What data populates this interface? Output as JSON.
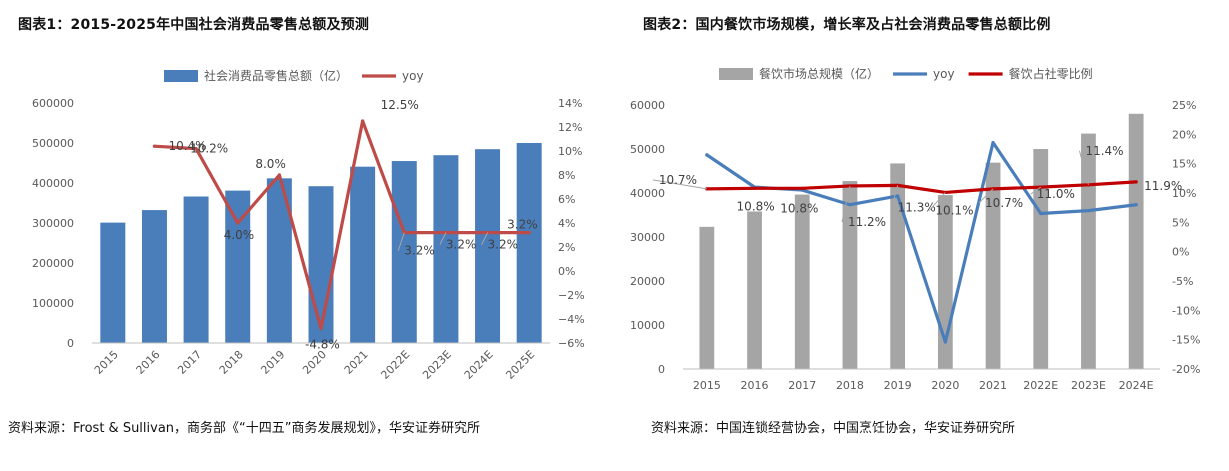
{
  "figures": {
    "left": {
      "title": "图表1：2015-2025年中国社会消费品零售总额及预测",
      "source": "资料来源：Frost & Sullivan，商务部《“十四五”商务发展规划》，华安证券研究所"
    },
    "right": {
      "title": "图表2：国内餐饮市场规模，增长率及占社会消费品零售总额比例",
      "source": "资料来源：中国连锁经营协会，中国烹饪协会，华安证券研究所"
    }
  },
  "chart_data": [
    {
      "type": "bar+line",
      "title": "",
      "categories": [
        "2015",
        "2016",
        "2017",
        "2018",
        "2019",
        "2020",
        "2021",
        "2022E",
        "2023E",
        "2024E",
        "2025E"
      ],
      "series": [
        {
          "name": "社会消费品零售总额（亿）",
          "type": "bar",
          "axis": "left",
          "color": "#4a7ebb",
          "values": [
            300931,
            332316,
            366262,
            380987,
            411649,
            391981,
            440823,
            454929,
            469485,
            484509,
            500013
          ]
        },
        {
          "name": "yoy",
          "type": "line",
          "axis": "right",
          "color": "#be4b48",
          "values": [
            null,
            10.4,
            10.2,
            4.0,
            8.0,
            -4.8,
            12.5,
            3.2,
            3.2,
            3.2,
            3.2
          ],
          "labels": [
            "",
            "10.4%",
            "10.2%",
            "4.0%",
            "8.0%",
            "-4.8%",
            "12.5%",
            "3.2%",
            "3.2%",
            "3.2%",
            "3.2%"
          ]
        }
      ],
      "y_left": {
        "min": 0,
        "max": 600000,
        "step": 100000,
        "ticks": [
          "0",
          "100000",
          "200000",
          "300000",
          "400000",
          "500000",
          "600000"
        ]
      },
      "y_right": {
        "min": -6,
        "max": 14,
        "step": 2,
        "ticks": [
          "−6%",
          "−4%",
          "−2%",
          "0%",
          "2%",
          "4%",
          "6%",
          "8%",
          "10%",
          "12%",
          "14%"
        ]
      },
      "legend": "top",
      "grid": false
    },
    {
      "type": "bar+line",
      "title": "",
      "categories": [
        "2015",
        "2016",
        "2017",
        "2018",
        "2019",
        "2020",
        "2021",
        "2022E",
        "2023E",
        "2024E"
      ],
      "series": [
        {
          "name": "餐饮市场总规模（亿）",
          "type": "bar",
          "axis": "left",
          "color": "#a5a5a5",
          "values": [
            32310,
            35799,
            39644,
            42716,
            46721,
            39527,
            46895,
            50000,
            53500,
            58000
          ]
        },
        {
          "name": "yoy",
          "type": "line",
          "axis": "right",
          "color": "#4a7ebb",
          "values": [
            16.5,
            11.0,
            10.5,
            8.0,
            9.5,
            -15.4,
            18.6,
            6.5,
            7.0,
            8.0
          ]
        },
        {
          "name": "餐饮占社零比例",
          "type": "line",
          "axis": "right",
          "color": "#c00000",
          "values": [
            10.7,
            10.8,
            10.8,
            11.2,
            11.3,
            10.1,
            10.7,
            11.0,
            11.4,
            11.9
          ],
          "labels": [
            "10.7%",
            "10.8%",
            "10.8%",
            "11.2%",
            "11.3%",
            "10.1%",
            "10.7%",
            "11.0%",
            "11.4%",
            "11.9%"
          ]
        }
      ],
      "y_left": {
        "min": 0,
        "max": 60000,
        "step": 10000,
        "ticks": [
          "0",
          "10000",
          "20000",
          "30000",
          "40000",
          "50000",
          "60000"
        ]
      },
      "y_right": {
        "min": -20,
        "max": 25,
        "step": 5,
        "ticks": [
          "-20%",
          "-15%",
          "-10%",
          "-5%",
          "0%",
          "5%",
          "10%",
          "15%",
          "20%",
          "25%"
        ]
      },
      "legend": "top",
      "grid": false
    }
  ]
}
